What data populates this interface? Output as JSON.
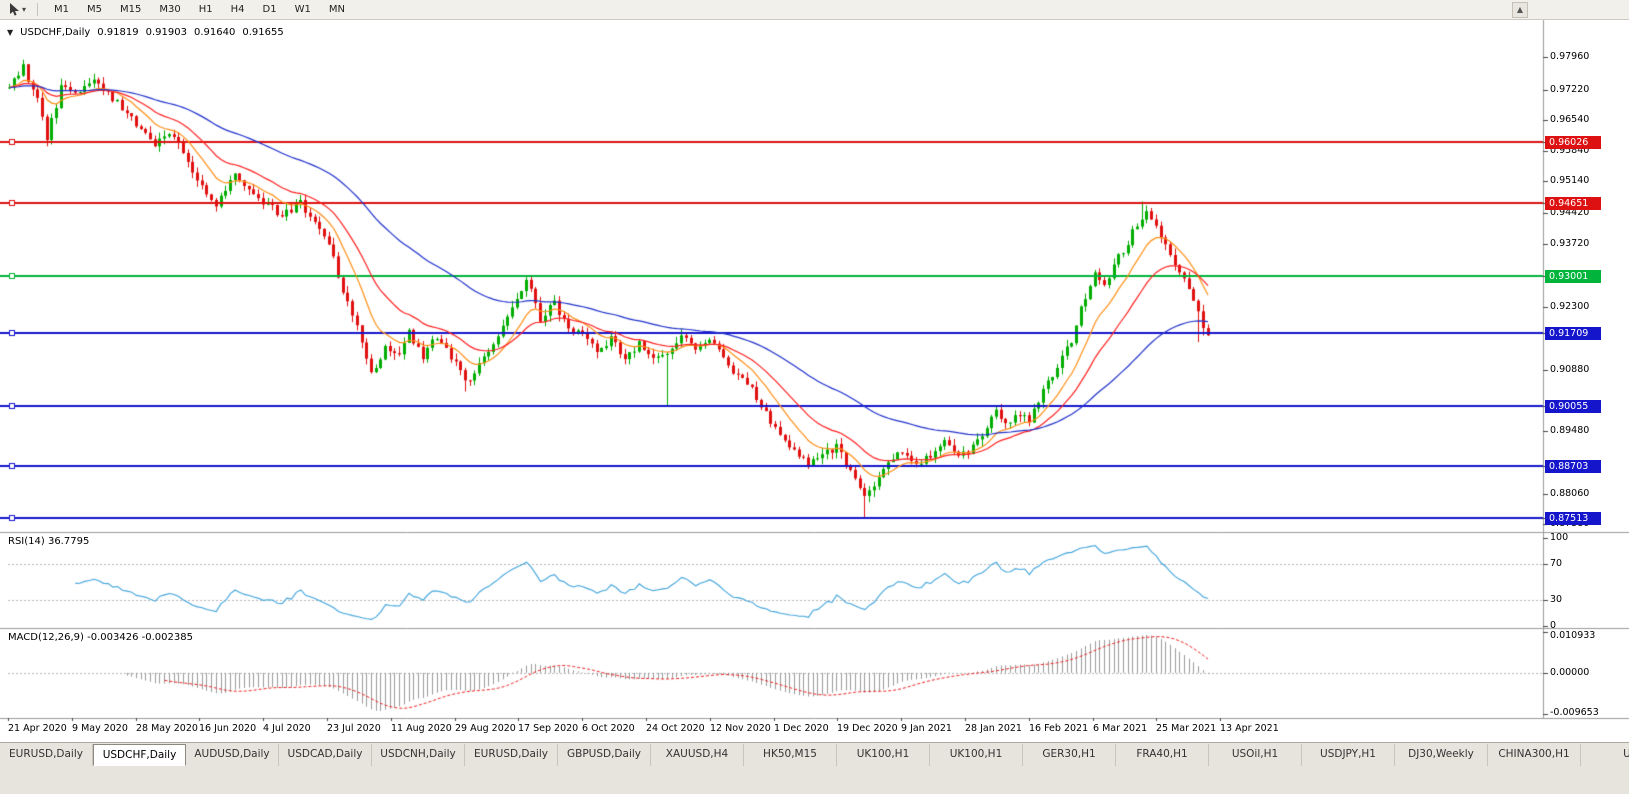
{
  "toolbar": {
    "timeframes": [
      "M1",
      "M5",
      "M15",
      "M30",
      "H1",
      "H4",
      "D1",
      "W1",
      "MN"
    ],
    "caret_icon": "▾",
    "scroll_up_icon": "▲"
  },
  "chart_header": {
    "collapse_icon": "▼",
    "symbol": "USDCHF,Daily",
    "open": "0.91819",
    "high": "0.91903",
    "low": "0.91640",
    "close": "0.91655"
  },
  "rsi_pane": {
    "label": "RSI(14) 36.7795",
    "ticks": [
      {
        "label": "100",
        "value": 100
      },
      {
        "label": "70",
        "value": 70
      },
      {
        "label": "30",
        "value": 30
      },
      {
        "label": "0",
        "value": 0
      }
    ]
  },
  "macd_pane": {
    "label": "MACD(12,26,9) -0.003426 -0.002385",
    "tick_top": "0.010933",
    "tick_zero": "0.00000",
    "tick_bottom": "-0.009653"
  },
  "price_axis": {
    "ticks": [
      "0.97960",
      "0.97220",
      "0.96540",
      "0.95840",
      "0.95140",
      "0.94420",
      "0.93720",
      "0.92300",
      "0.90880",
      "0.89480",
      "0.88060",
      "0.87380"
    ],
    "badges": [
      {
        "label": "0.96026",
        "value": 0.96026,
        "color": "#dd1111"
      },
      {
        "label": "0.94651",
        "value": 0.94651,
        "color": "#dd1111"
      },
      {
        "label": "0.93001",
        "value": 0.93001,
        "color": "#00b43c"
      },
      {
        "label": "0.91709",
        "value": 0.91709,
        "color": "#1515cc"
      },
      {
        "label": "0.90055",
        "value": 0.90055,
        "color": "#1515cc"
      },
      {
        "label": "0.88703",
        "value": 0.88703,
        "color": "#1515cc"
      },
      {
        "label": "0.87513",
        "value": 0.87513,
        "color": "#1515cc"
      }
    ]
  },
  "date_axis": {
    "labels": [
      "21 Apr 2020",
      "9 May 2020",
      "28 May 2020",
      "16 Jun 2020",
      "4 Jul 2020",
      "23 Jul 2020",
      "11 Aug 2020",
      "29 Aug 2020",
      "17 Sep 2020",
      "6 Oct 2020",
      "24 Oct 2020",
      "12 Nov 2020",
      "1 Dec 2020",
      "19 Dec 2020",
      "9 Jan 2021",
      "28 Jan 2021",
      "16 Feb 2021",
      "6 Mar 2021",
      "25 Mar 2021",
      "13 Apr 2021"
    ]
  },
  "tabs": {
    "items": [
      {
        "label": "EURUSD,Daily",
        "active": false
      },
      {
        "label": "USDCHF,Daily",
        "active": true
      },
      {
        "label": "AUDUSD,Daily",
        "active": false
      },
      {
        "label": "USDCAD,Daily",
        "active": false
      },
      {
        "label": "USDCNH,Daily",
        "active": false
      },
      {
        "label": "EURUSD,Daily",
        "active": false
      },
      {
        "label": "GBPUSD,Daily",
        "active": false
      },
      {
        "label": "XAUUSD,H4",
        "active": false
      },
      {
        "label": "HK50,M15",
        "active": false
      },
      {
        "label": "UK100,H1",
        "active": false
      },
      {
        "label": "UK100,H1",
        "active": false
      },
      {
        "label": "GER30,H1",
        "active": false
      },
      {
        "label": "FRA40,H1",
        "active": false
      },
      {
        "label": "USOil,H1",
        "active": false
      },
      {
        "label": "USDJPY,H1",
        "active": false
      },
      {
        "label": "DJ30,Weekly",
        "active": false
      },
      {
        "label": "CHINA300,H1",
        "active": false
      },
      {
        "label": "U",
        "active": false
      }
    ]
  },
  "colors": {
    "up": "#00ad00",
    "down": "#e01010",
    "background": "#ffffff",
    "separator": "#9a9a9a",
    "rsi_line": "#42a5dd",
    "macd_histogram": "#9a9a9a",
    "macd_signal": "#ee2222",
    "level_dotted": "#b8b8b8"
  },
  "chart_data": {
    "type": "candlestick",
    "symbol": "USDCHF",
    "timeframe": "Daily",
    "last_ohlc": {
      "open": 0.91819,
      "high": 0.91903,
      "low": 0.9164,
      "close": 0.91655
    },
    "visible_price_range": [
      0.87199,
      0.98798
    ],
    "hlines": [
      {
        "value": 0.96026,
        "color": "#dd1111"
      },
      {
        "value": 0.94651,
        "color": "#dd1111"
      },
      {
        "value": 0.93001,
        "color": "#00b43c"
      },
      {
        "value": 0.91709,
        "color": "#1515cc"
      },
      {
        "value": 0.90055,
        "color": "#1515cc"
      },
      {
        "value": 0.88703,
        "color": "#1515cc"
      },
      {
        "value": 0.87513,
        "color": "#1515cc"
      }
    ],
    "moving_averages": [
      {
        "period": 10,
        "method": "ema",
        "color": "#ff9018"
      },
      {
        "period": 21,
        "method": "ema",
        "color": "#ff2222"
      },
      {
        "period": 56,
        "method": "ema",
        "color": "#2233cc"
      }
    ],
    "candles": {
      "count": 256,
      "noise_seed": 20210413,
      "noise_amp": 0.0011,
      "close_keypoints": [
        [
          0,
          0.973
        ],
        [
          3,
          0.9772
        ],
        [
          6,
          0.97
        ],
        [
          8,
          0.9612
        ],
        [
          11,
          0.9725
        ],
        [
          14,
          0.9718
        ],
        [
          18,
          0.9745
        ],
        [
          22,
          0.9702
        ],
        [
          27,
          0.9645
        ],
        [
          31,
          0.9602
        ],
        [
          34,
          0.9628
        ],
        [
          38,
          0.956
        ],
        [
          41,
          0.9505
        ],
        [
          44,
          0.9465
        ],
        [
          48,
          0.9528
        ],
        [
          54,
          0.947
        ],
        [
          58,
          0.9437
        ],
        [
          62,
          0.9468
        ],
        [
          65,
          0.942
        ],
        [
          68,
          0.9372
        ],
        [
          71,
          0.9268
        ],
        [
          74,
          0.918
        ],
        [
          77,
          0.9078
        ],
        [
          80,
          0.914
        ],
        [
          83,
          0.9118
        ],
        [
          85,
          0.9172
        ],
        [
          88,
          0.912
        ],
        [
          91,
          0.9163
        ],
        [
          95,
          0.9098
        ],
        [
          98,
          0.9058
        ],
        [
          101,
          0.9122
        ],
        [
          104,
          0.9165
        ],
        [
          107,
          0.923
        ],
        [
          110,
          0.9292
        ],
        [
          113,
          0.9205
        ],
        [
          116,
          0.9238
        ],
        [
          119,
          0.918
        ],
        [
          122,
          0.9165
        ],
        [
          125,
          0.9128
        ],
        [
          128,
          0.9158
        ],
        [
          131,
          0.9108
        ],
        [
          134,
          0.9148
        ],
        [
          137,
          0.9122
        ],
        [
          140,
          0.9118
        ],
        [
          143,
          0.9162
        ],
        [
          146,
          0.914
        ],
        [
          149,
          0.9158
        ],
        [
          152,
          0.9112
        ],
        [
          155,
          0.9075
        ],
        [
          158,
          0.904
        ],
        [
          161,
          0.8985
        ],
        [
          164,
          0.8935
        ],
        [
          167,
          0.8902
        ],
        [
          170,
          0.8872
        ],
        [
          173,
          0.8895
        ],
        [
          176,
          0.8912
        ],
        [
          179,
          0.8858
        ],
        [
          182,
          0.88
        ],
        [
          184,
          0.882
        ],
        [
          187,
          0.8872
        ],
        [
          190,
          0.8902
        ],
        [
          193,
          0.887
        ],
        [
          196,
          0.8892
        ],
        [
          199,
          0.8922
        ],
        [
          202,
          0.8885
        ],
        [
          205,
          0.8912
        ],
        [
          208,
          0.8962
        ],
        [
          210,
          0.9005
        ],
        [
          212,
          0.8958
        ],
        [
          214,
          0.8992
        ],
        [
          217,
          0.8972
        ],
        [
          220,
          0.9042
        ],
        [
          223,
          0.9092
        ],
        [
          226,
          0.9152
        ],
        [
          228,
          0.9232
        ],
        [
          231,
          0.9302
        ],
        [
          233,
          0.9278
        ],
        [
          235,
          0.9328
        ],
        [
          238,
          0.9375
        ],
        [
          240,
          0.942
        ],
        [
          242,
          0.9445
        ],
        [
          244,
          0.9415
        ],
        [
          246,
          0.9372
        ],
        [
          248,
          0.9322
        ],
        [
          250,
          0.9295
        ],
        [
          252,
          0.9245
        ],
        [
          254,
          0.9182
        ],
        [
          255,
          0.91655
        ]
      ],
      "wick_overrides": [
        {
          "i": 8,
          "low": 0.9597
        },
        {
          "i": 97,
          "low": 0.9038
        },
        {
          "i": 110,
          "high": 0.9299
        },
        {
          "i": 140,
          "low": 0.9007
        },
        {
          "i": 182,
          "low": 0.8752
        },
        {
          "i": 241,
          "high": 0.9469
        },
        {
          "i": 253,
          "low": 0.915
        }
      ]
    },
    "rsi": {
      "period": 14,
      "current": 36.7795,
      "levels": [
        70,
        30
      ],
      "range": [
        0,
        100
      ]
    },
    "macd": {
      "fast": 12,
      "slow": 26,
      "signal_period": 9,
      "current_macd": -0.003426,
      "current_signal": -0.002385,
      "axis_max": 0.010933,
      "axis_min": -0.009653
    }
  }
}
